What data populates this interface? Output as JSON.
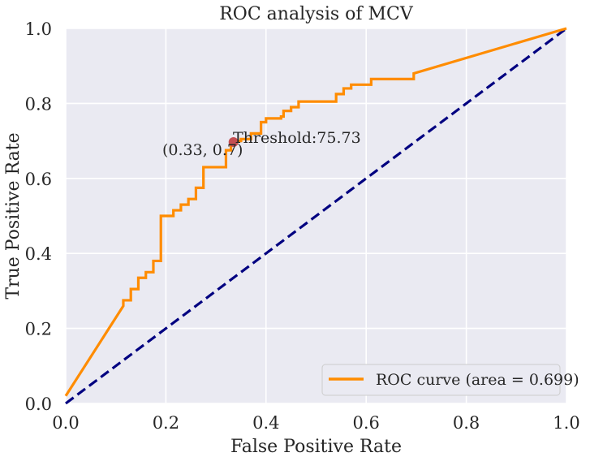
{
  "chart_data": {
    "type": "line",
    "title": "ROC analysis of MCV",
    "xlabel": "False Positive Rate",
    "ylabel": "True Positive Rate",
    "xlim": [
      0.0,
      1.0
    ],
    "ylim": [
      0.0,
      1.0
    ],
    "xticks": [
      "0.0",
      "0.2",
      "0.4",
      "0.6",
      "0.8",
      "1.0"
    ],
    "yticks": [
      "0.0",
      "0.2",
      "0.4",
      "0.6",
      "0.8",
      "1.0"
    ],
    "grid": true,
    "legend_position": "lower-right",
    "series": [
      {
        "name": "ROC curve (area = 0.699)",
        "color": "#ff8c00",
        "style": "solid",
        "x": [
          0.0,
          0.115,
          0.115,
          0.13,
          0.13,
          0.145,
          0.145,
          0.16,
          0.16,
          0.175,
          0.175,
          0.19,
          0.19,
          0.215,
          0.215,
          0.23,
          0.23,
          0.245,
          0.245,
          0.26,
          0.26,
          0.275,
          0.275,
          0.32,
          0.32,
          0.33,
          0.33,
          0.35,
          0.35,
          0.37,
          0.37,
          0.39,
          0.39,
          0.4,
          0.4,
          0.43,
          0.43,
          0.435,
          0.435,
          0.45,
          0.45,
          0.465,
          0.465,
          0.54,
          0.54,
          0.555,
          0.555,
          0.57,
          0.57,
          0.61,
          0.61,
          0.695,
          0.695,
          1.0
        ],
        "y": [
          0.02,
          0.26,
          0.275,
          0.275,
          0.305,
          0.305,
          0.335,
          0.335,
          0.35,
          0.35,
          0.38,
          0.38,
          0.5,
          0.5,
          0.515,
          0.515,
          0.53,
          0.53,
          0.545,
          0.545,
          0.575,
          0.575,
          0.63,
          0.63,
          0.675,
          0.675,
          0.7,
          0.7,
          0.705,
          0.705,
          0.72,
          0.72,
          0.75,
          0.75,
          0.76,
          0.76,
          0.765,
          0.765,
          0.78,
          0.78,
          0.79,
          0.79,
          0.805,
          0.805,
          0.825,
          0.825,
          0.84,
          0.84,
          0.85,
          0.85,
          0.865,
          0.865,
          0.88,
          1.0
        ]
      },
      {
        "name": "",
        "color": "#000080",
        "style": "dashed",
        "x": [
          0.0,
          1.0
        ],
        "y": [
          0.0,
          1.0
        ]
      }
    ],
    "marker": {
      "x": 0.335,
      "y": 0.697,
      "color": "#c44e52"
    },
    "annotations": {
      "threshold": "Threshold:75.73",
      "coords": "(0.33, 0.7)"
    },
    "colors": {
      "plot_background": "#eaeaf2",
      "grid": "#ffffff"
    }
  }
}
